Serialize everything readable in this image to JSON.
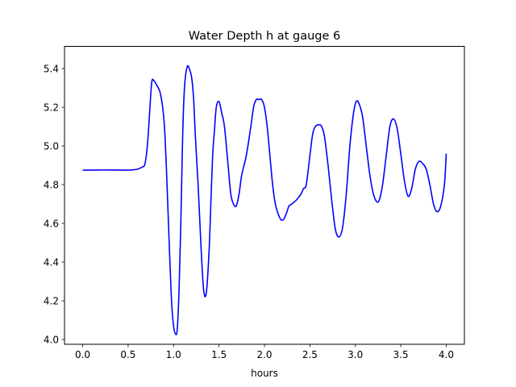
{
  "chart_data": {
    "type": "line",
    "title": "Water Depth h at gauge 6",
    "xlabel": "hours",
    "ylabel": "",
    "xlim": [
      -0.2,
      4.2
    ],
    "ylim": [
      3.975,
      5.515
    ],
    "xticks": [
      "0.0",
      "0.5",
      "1.0",
      "1.5",
      "2.0",
      "2.5",
      "3.0",
      "3.5",
      "4.0"
    ],
    "yticks": [
      "4.0",
      "4.2",
      "4.4",
      "4.6",
      "4.8",
      "5.0",
      "5.2",
      "5.4"
    ],
    "grid": false,
    "series": [
      {
        "color": "#0000ff",
        "x": [
          0.0,
          0.3,
          0.5,
          0.6,
          0.65,
          0.68,
          0.7,
          0.72,
          0.74,
          0.76,
          0.78,
          0.82,
          0.85,
          0.88,
          0.9,
          0.92,
          0.94,
          0.96,
          0.98,
          1.0,
          1.02,
          1.04,
          1.06,
          1.08,
          1.1,
          1.12,
          1.15,
          1.18,
          1.2,
          1.22,
          1.24,
          1.27,
          1.3,
          1.33,
          1.36,
          1.39,
          1.41,
          1.43,
          1.45,
          1.47,
          1.5,
          1.53,
          1.56,
          1.6,
          1.63,
          1.66,
          1.69,
          1.72,
          1.75,
          1.8,
          1.85,
          1.88,
          1.91,
          1.94,
          1.97,
          2.0,
          2.03,
          2.06,
          2.09,
          2.12,
          2.15,
          2.18,
          2.21,
          2.24,
          2.27,
          2.3,
          2.35,
          2.4,
          2.43,
          2.46,
          2.5,
          2.53,
          2.56,
          2.6,
          2.63,
          2.66,
          2.7,
          2.74,
          2.78,
          2.82,
          2.86,
          2.9,
          2.94,
          2.98,
          3.01,
          3.04,
          3.08,
          3.12,
          3.16,
          3.2,
          3.24,
          3.27,
          3.3,
          3.34,
          3.38,
          3.42,
          3.46,
          3.5,
          3.54,
          3.58,
          3.62,
          3.66,
          3.7,
          3.74,
          3.78,
          3.82,
          3.86,
          3.9,
          3.94,
          3.98,
          4.0
        ],
        "y": [
          4.875,
          4.876,
          4.875,
          4.88,
          4.89,
          4.9,
          4.95,
          5.05,
          5.2,
          5.33,
          5.34,
          5.31,
          5.28,
          5.2,
          5.1,
          4.9,
          4.65,
          4.4,
          4.18,
          4.07,
          4.03,
          4.05,
          4.25,
          4.6,
          5.05,
          5.3,
          5.41,
          5.39,
          5.35,
          5.25,
          5.05,
          4.8,
          4.5,
          4.26,
          4.24,
          4.45,
          4.7,
          4.95,
          5.08,
          5.2,
          5.23,
          5.17,
          5.1,
          4.9,
          4.75,
          4.7,
          4.69,
          4.75,
          4.85,
          4.95,
          5.1,
          5.2,
          5.24,
          5.24,
          5.24,
          5.2,
          5.1,
          4.95,
          4.8,
          4.7,
          4.65,
          4.62,
          4.62,
          4.65,
          4.69,
          4.7,
          4.72,
          4.75,
          4.78,
          4.8,
          4.95,
          5.06,
          5.1,
          5.11,
          5.1,
          5.05,
          4.9,
          4.72,
          4.57,
          4.53,
          4.58,
          4.75,
          5.0,
          5.17,
          5.23,
          5.22,
          5.15,
          5.0,
          4.85,
          4.75,
          4.71,
          4.73,
          4.8,
          4.95,
          5.1,
          5.14,
          5.09,
          4.96,
          4.82,
          4.74,
          4.78,
          4.88,
          4.92,
          4.91,
          4.88,
          4.8,
          4.7,
          4.66,
          4.69,
          4.8,
          4.96
        ]
      }
    ]
  }
}
